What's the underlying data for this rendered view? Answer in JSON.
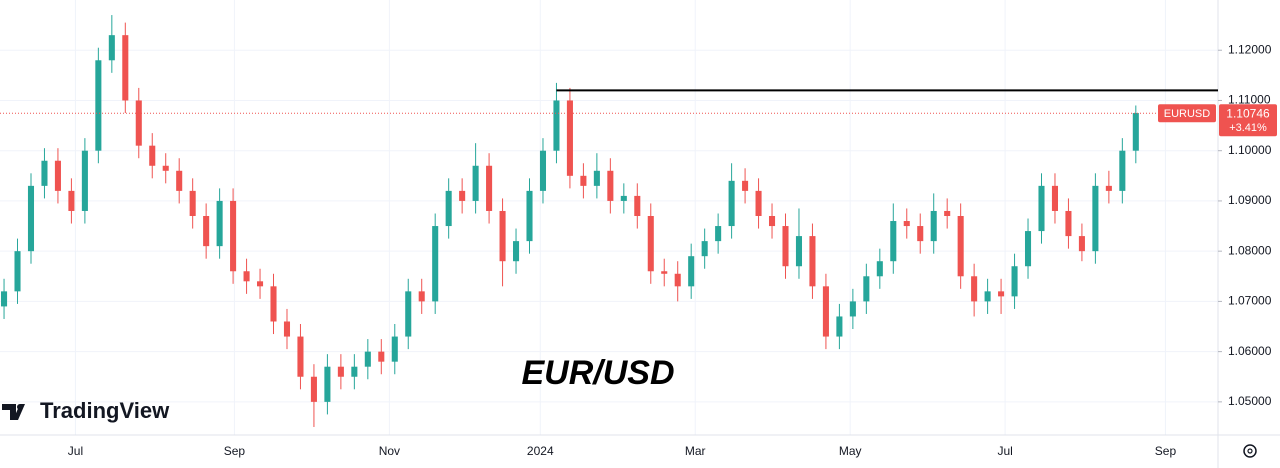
{
  "chart_data": {
    "type": "candlestick",
    "annotation": "EUR/USD",
    "brand": "TradingView",
    "up_color": "#26a69a",
    "down_color": "#ef5350",
    "grid": true,
    "xlim": [
      -0.3,
      90.1
    ],
    "xticks": [
      {
        "value": 5.3,
        "label": "Jul"
      },
      {
        "value": 17.1,
        "label": "Sep"
      },
      {
        "value": 28.6,
        "label": "Nov"
      },
      {
        "value": 39.8,
        "label": "2024"
      },
      {
        "value": 51.3,
        "label": "Mar"
      },
      {
        "value": 62.8,
        "label": "May"
      },
      {
        "value": 74.3,
        "label": "Jul"
      },
      {
        "value": 86.2,
        "label": "Sep"
      }
    ],
    "ylim": [
      1.044,
      1.13
    ],
    "yticks": [
      {
        "value": 1.05,
        "label": "1.05000"
      },
      {
        "value": 1.06,
        "label": "1.06000"
      },
      {
        "value": 1.07,
        "label": "1.07000"
      },
      {
        "value": 1.08,
        "label": "1.08000"
      },
      {
        "value": 1.09,
        "label": "1.09000"
      },
      {
        "value": 1.1,
        "label": "1.10000"
      },
      {
        "value": 1.11,
        "label": "1.11000"
      },
      {
        "value": 1.12,
        "label": "1.12000"
      }
    ],
    "resistance_line": {
      "value": 1.112,
      "x_start": 41,
      "color": "#000000"
    },
    "last_price": {
      "symbol": "EURUSD",
      "value": 1.10746,
      "change": "+3.41%",
      "color": "#ef5350"
    },
    "open": [
      1.069,
      1.072,
      1.08,
      1.093,
      1.098,
      1.092,
      1.088,
      1.1,
      1.118,
      1.123,
      1.11,
      1.101,
      1.097,
      1.096,
      1.092,
      1.087,
      1.081,
      1.09,
      1.076,
      1.074,
      1.073,
      1.066,
      1.063,
      1.055,
      1.05,
      1.057,
      1.055,
      1.057,
      1.06,
      1.058,
      1.063,
      1.072,
      1.07,
      1.085,
      1.092,
      1.09,
      1.097,
      1.088,
      1.078,
      1.082,
      1.092,
      1.1,
      1.11,
      1.095,
      1.093,
      1.096,
      1.09,
      1.091,
      1.087,
      1.076,
      1.0755,
      1.073,
      1.079,
      1.082,
      1.085,
      1.094,
      1.092,
      1.087,
      1.085,
      1.077,
      1.083,
      1.073,
      1.063,
      1.067,
      1.07,
      1.075,
      1.078,
      1.086,
      1.085,
      1.082,
      1.088,
      1.087,
      1.075,
      1.07,
      1.072,
      1.071,
      1.077,
      1.084,
      1.093,
      1.088,
      1.083,
      1.08,
      1.093,
      1.092,
      1.1
    ],
    "high": [
      1.0745,
      1.0825,
      1.0955,
      1.1005,
      1.1005,
      1.0945,
      1.1025,
      1.1205,
      1.127,
      1.1255,
      1.1125,
      1.1035,
      1.0995,
      1.0985,
      1.0945,
      1.0895,
      1.0925,
      1.0925,
      1.0785,
      1.0765,
      1.0755,
      1.0685,
      1.0655,
      1.0575,
      1.0595,
      1.0595,
      1.0595,
      1.0625,
      1.0625,
      1.0655,
      1.0745,
      1.0745,
      1.0875,
      1.0945,
      1.0945,
      1.1015,
      1.0995,
      1.0905,
      1.0845,
      1.0945,
      1.1025,
      1.1135,
      1.1125,
      1.0975,
      1.0995,
      1.0985,
      1.0935,
      1.0935,
      1.0895,
      1.0785,
      1.078,
      1.0815,
      1.0845,
      1.0875,
      1.0975,
      1.0965,
      1.0945,
      1.0895,
      1.0875,
      1.0885,
      1.0855,
      1.0755,
      1.0695,
      1.0725,
      1.0775,
      1.0805,
      1.0895,
      1.0885,
      1.0875,
      1.0915,
      1.0905,
      1.0895,
      1.0775,
      1.0745,
      1.0745,
      1.0795,
      1.0865,
      1.0955,
      1.0955,
      1.0905,
      1.0855,
      1.0955,
      1.096,
      1.1025,
      1.109
    ],
    "low": [
      1.0665,
      1.0695,
      1.0775,
      1.0905,
      1.0895,
      1.0855,
      1.0855,
      1.0975,
      1.1155,
      1.1075,
      1.0985,
      1.0945,
      1.0935,
      1.0895,
      1.0845,
      1.0785,
      1.0785,
      1.0735,
      1.0715,
      1.0705,
      1.0635,
      1.0605,
      1.0525,
      1.045,
      1.0475,
      1.0525,
      1.0525,
      1.0545,
      1.0555,
      1.0555,
      1.0605,
      1.0675,
      1.0675,
      1.0825,
      1.0875,
      1.0875,
      1.0855,
      1.073,
      1.0755,
      1.0795,
      1.0895,
      1.0975,
      1.0925,
      1.0905,
      1.0905,
      1.0875,
      1.0875,
      1.0845,
      1.0735,
      1.073,
      1.07,
      1.0705,
      1.0765,
      1.0795,
      1.0825,
      1.0895,
      1.0845,
      1.0825,
      1.0745,
      1.0745,
      1.0705,
      1.0605,
      1.0605,
      1.0645,
      1.0675,
      1.0725,
      1.0755,
      1.0825,
      1.0795,
      1.0795,
      1.0845,
      1.0725,
      1.067,
      1.0675,
      1.0675,
      1.0685,
      1.0745,
      1.0815,
      1.0855,
      1.0805,
      1.078,
      1.0775,
      1.0895,
      1.0895,
      1.0975
    ],
    "close": [
      1.072,
      1.08,
      1.093,
      1.098,
      1.092,
      1.088,
      1.1,
      1.118,
      1.123,
      1.11,
      1.101,
      1.097,
      1.096,
      1.092,
      1.087,
      1.081,
      1.09,
      1.076,
      1.074,
      1.073,
      1.066,
      1.063,
      1.055,
      1.05,
      1.057,
      1.055,
      1.057,
      1.06,
      1.058,
      1.063,
      1.072,
      1.07,
      1.085,
      1.092,
      1.09,
      1.097,
      1.088,
      1.078,
      1.082,
      1.092,
      1.1,
      1.11,
      1.095,
      1.093,
      1.096,
      1.09,
      1.091,
      1.087,
      1.076,
      1.0755,
      1.073,
      1.079,
      1.082,
      1.085,
      1.094,
      1.092,
      1.087,
      1.085,
      1.077,
      1.083,
      1.073,
      1.063,
      1.067,
      1.07,
      1.075,
      1.078,
      1.086,
      1.085,
      1.082,
      1.088,
      1.087,
      1.075,
      1.07,
      1.072,
      1.071,
      1.077,
      1.084,
      1.093,
      1.088,
      1.083,
      1.08,
      1.093,
      1.092,
      1.1,
      1.1075
    ]
  }
}
